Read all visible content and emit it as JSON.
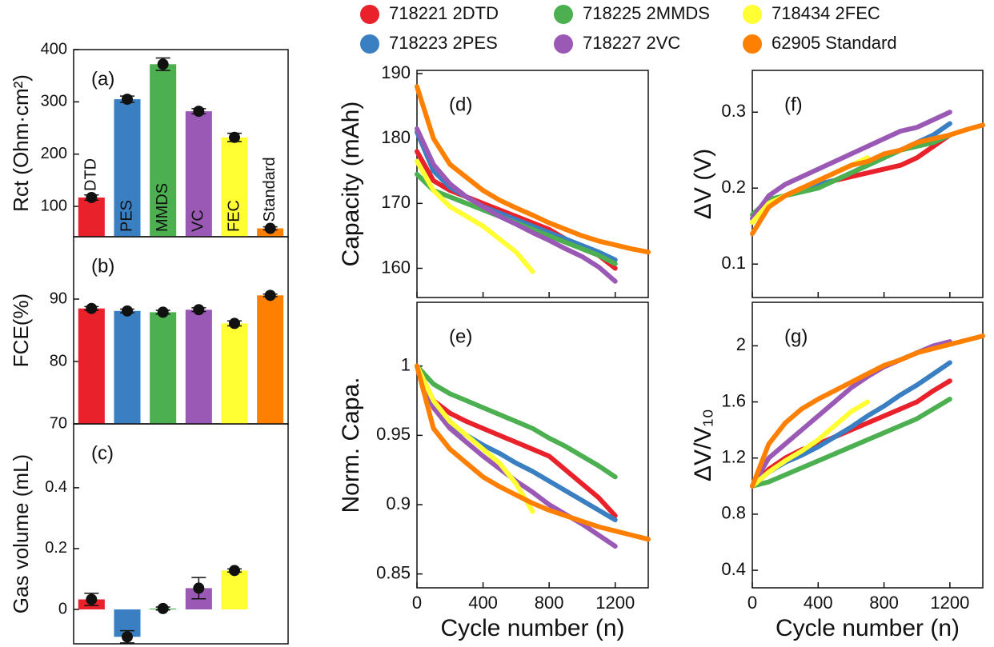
{
  "chart_data": [
    {
      "type": "bar",
      "title": "(a)",
      "ylabel": "Rct (Ohm·cm²)",
      "categories": [
        "DTD",
        "PES",
        "MMDS",
        "VC",
        "FEC",
        "Standard"
      ],
      "values": [
        117,
        305,
        372,
        282,
        232,
        58
      ],
      "errors": [
        5,
        6,
        12,
        5,
        8,
        3
      ],
      "colors": [
        "#e8212a",
        "#3a7fc1",
        "#4caf50",
        "#9b59b6",
        "#ffff33",
        "#ff7f00"
      ],
      "ylim": [
        42,
        400
      ],
      "yticks": [
        100,
        200,
        300,
        400
      ]
    },
    {
      "type": "bar",
      "title": "(b)",
      "ylabel": "FCE(%)",
      "values": [
        88.5,
        88.1,
        87.9,
        88.3,
        86.1,
        90.6
      ],
      "errors": [
        0.3,
        0.3,
        0.3,
        0.3,
        0.4,
        0.2
      ],
      "colors": [
        "#e8212a",
        "#3a7fc1",
        "#4caf50",
        "#9b59b6",
        "#ffff33",
        "#ff7f00"
      ],
      "ylim": [
        70,
        100
      ],
      "yticks": [
        70,
        80,
        90
      ]
    },
    {
      "type": "bar",
      "title": "(c)",
      "ylabel": "Gas volume (mL)",
      "values": [
        0.033,
        -0.09,
        0.003,
        0.07,
        0.128,
        null
      ],
      "errors": [
        0.02,
        0.02,
        0.005,
        0.035,
        0.005,
        null
      ],
      "colors": [
        "#e8212a",
        "#3a7fc1",
        "#4caf50",
        "#9b59b6",
        "#ffff33",
        "#ff7f00"
      ],
      "ylim": [
        -0.113,
        0.61
      ],
      "yticks": [
        0,
        0.2,
        0.4
      ]
    },
    {
      "type": "line",
      "title": "(d)",
      "ylabel": "Capacity (mAh)",
      "x": [
        0,
        100,
        200,
        300,
        400,
        500,
        600,
        700,
        800,
        900,
        1000,
        1100,
        1200,
        1300,
        1400
      ],
      "xlim": [
        0,
        1400
      ],
      "xticks": [
        0,
        400,
        800,
        1200
      ],
      "ylim": [
        155.5,
        190.5
      ],
      "yticks": [
        160,
        170,
        180,
        190
      ],
      "series": [
        {
          "name": "718221 2DTD",
          "color": "#e8212a",
          "values": [
            178,
            173.5,
            172,
            171,
            170,
            169,
            168,
            167,
            166,
            164.5,
            163,
            162,
            160,
            null,
            null
          ]
        },
        {
          "name": "718223 2PES",
          "color": "#3a7fc1",
          "values": [
            181,
            175,
            172.5,
            171,
            169.5,
            168.5,
            167.5,
            166.5,
            165.5,
            164.5,
            163.5,
            162.5,
            161.3,
            null,
            null
          ]
        },
        {
          "name": "718225 2MMDS",
          "color": "#4caf50",
          "values": [
            174.5,
            172,
            171,
            170,
            169,
            168,
            167,
            166,
            165,
            164,
            163,
            162,
            160.7,
            null,
            null
          ]
        },
        {
          "name": "718227 2VC",
          "color": "#9b59b6",
          "values": [
            181.5,
            176,
            173,
            171,
            169.5,
            168,
            166.8,
            165.5,
            164.3,
            163,
            161.8,
            160.2,
            158,
            null,
            null
          ]
        },
        {
          "name": "718434 2FEC",
          "color": "#ffff33",
          "values": [
            176.5,
            172,
            169.5,
            168,
            166.5,
            164.5,
            162.5,
            159.5,
            null,
            null,
            null,
            null,
            null,
            null,
            null
          ]
        },
        {
          "name": "62905 Standard",
          "color": "#ff7f00",
          "values": [
            188,
            180,
            176,
            174,
            172,
            170.5,
            169.3,
            168.2,
            167,
            166,
            165,
            164.2,
            163.6,
            163,
            162.5
          ]
        }
      ]
    },
    {
      "type": "line",
      "title": "(e)",
      "ylabel": "Norm. Capa.",
      "xlabel": "Cycle number (n)",
      "x": [
        0,
        100,
        200,
        300,
        400,
        500,
        600,
        700,
        800,
        900,
        1000,
        1100,
        1200,
        1300,
        1400
      ],
      "xlim": [
        0,
        1400
      ],
      "xticks": [
        0,
        400,
        800,
        1200
      ],
      "ylim": [
        0.84,
        1.046
      ],
      "yticks": [
        0.85,
        0.9,
        0.95,
        1
      ],
      "series": [
        {
          "color": "#e8212a",
          "values": [
            1,
            0.975,
            0.966,
            0.96,
            0.955,
            0.95,
            0.945,
            0.94,
            0.935,
            0.925,
            0.915,
            0.905,
            0.892,
            null,
            null
          ]
        },
        {
          "color": "#3a7fc1",
          "values": [
            1,
            0.97,
            0.958,
            0.95,
            0.943,
            0.937,
            0.93,
            0.924,
            0.917,
            0.91,
            0.903,
            0.896,
            0.889,
            null,
            null
          ]
        },
        {
          "color": "#4caf50",
          "values": [
            1,
            0.987,
            0.98,
            0.975,
            0.97,
            0.965,
            0.96,
            0.955,
            0.948,
            0.942,
            0.935,
            0.928,
            0.92,
            null,
            null
          ]
        },
        {
          "color": "#9b59b6",
          "values": [
            1,
            0.97,
            0.955,
            0.945,
            0.935,
            0.926,
            0.917,
            0.909,
            0.9,
            0.893,
            0.886,
            0.878,
            0.87,
            null,
            null
          ]
        },
        {
          "color": "#ffff33",
          "values": [
            1,
            0.975,
            0.96,
            0.95,
            0.94,
            0.93,
            0.915,
            0.895,
            null,
            null,
            null,
            null,
            null,
            null,
            null
          ]
        },
        {
          "color": "#ff7f00",
          "values": [
            1,
            0.955,
            0.94,
            0.93,
            0.92,
            0.913,
            0.907,
            0.901,
            0.896,
            0.892,
            0.888,
            0.884,
            0.881,
            0.878,
            0.875
          ]
        }
      ]
    },
    {
      "type": "line",
      "title": "(f)",
      "ylabel": "ΔV (V)",
      "x": [
        0,
        100,
        200,
        300,
        400,
        500,
        600,
        700,
        800,
        900,
        1000,
        1100,
        1200,
        1300,
        1400
      ],
      "xlim": [
        0,
        1400
      ],
      "xticks": [
        0,
        400,
        800,
        1200
      ],
      "ylim": [
        0.056,
        0.355
      ],
      "yticks": [
        0.1,
        0.2,
        0.3
      ],
      "series": [
        {
          "color": "#e8212a",
          "values": [
            0.155,
            0.18,
            0.19,
            0.2,
            0.205,
            0.21,
            0.215,
            0.22,
            0.225,
            0.23,
            0.24,
            0.255,
            0.27,
            null,
            null
          ]
        },
        {
          "color": "#3a7fc1",
          "values": [
            0.16,
            0.18,
            0.19,
            0.2,
            0.205,
            0.21,
            0.22,
            0.23,
            0.24,
            0.25,
            0.26,
            0.27,
            0.285,
            null,
            null
          ]
        },
        {
          "color": "#4caf50",
          "values": [
            0.165,
            0.185,
            0.19,
            0.195,
            0.2,
            0.21,
            0.22,
            0.23,
            0.24,
            0.25,
            0.255,
            0.26,
            0.27,
            null,
            null
          ]
        },
        {
          "color": "#9b59b6",
          "values": [
            0.16,
            0.19,
            0.205,
            0.215,
            0.225,
            0.235,
            0.245,
            0.255,
            0.265,
            0.275,
            0.28,
            0.29,
            0.3,
            null,
            null
          ]
        },
        {
          "color": "#ffff33",
          "values": [
            0.155,
            0.18,
            0.19,
            0.2,
            0.21,
            0.22,
            0.23,
            0.24,
            null,
            null,
            null,
            null,
            null,
            null,
            null
          ]
        },
        {
          "color": "#ff7f00",
          "values": [
            0.14,
            0.175,
            0.19,
            0.2,
            0.21,
            0.22,
            0.23,
            0.235,
            0.245,
            0.25,
            0.26,
            0.265,
            0.27,
            0.277,
            0.283
          ]
        }
      ]
    },
    {
      "type": "line",
      "title": "(g)",
      "ylabel": "ΔV/V₁₀",
      "xlabel": "Cycle number (n)",
      "x": [
        0,
        100,
        200,
        300,
        400,
        500,
        600,
        700,
        800,
        900,
        1000,
        1100,
        1200,
        1300,
        1400
      ],
      "xlim": [
        0,
        1400
      ],
      "xticks": [
        0,
        400,
        800,
        1200
      ],
      "ylim": [
        0.275,
        2.31
      ],
      "yticks": [
        0.4,
        0.8,
        1.2,
        1.6,
        2
      ],
      "series": [
        {
          "color": "#e8212a",
          "values": [
            1,
            1.12,
            1.2,
            1.26,
            1.3,
            1.35,
            1.4,
            1.45,
            1.5,
            1.55,
            1.6,
            1.68,
            1.75,
            null,
            null
          ]
        },
        {
          "color": "#3a7fc1",
          "values": [
            1,
            1.1,
            1.17,
            1.22,
            1.28,
            1.35,
            1.42,
            1.5,
            1.57,
            1.65,
            1.72,
            1.8,
            1.88,
            null,
            null
          ]
        },
        {
          "color": "#4caf50",
          "values": [
            1,
            1.03,
            1.08,
            1.13,
            1.18,
            1.23,
            1.28,
            1.33,
            1.38,
            1.43,
            1.48,
            1.55,
            1.62,
            null,
            null
          ]
        },
        {
          "color": "#9b59b6",
          "values": [
            1,
            1.2,
            1.3,
            1.4,
            1.5,
            1.6,
            1.7,
            1.78,
            1.85,
            1.9,
            1.95,
            2,
            2.03,
            null,
            null
          ]
        },
        {
          "color": "#ffff33",
          "values": [
            1,
            1.1,
            1.18,
            1.25,
            1.33,
            1.43,
            1.53,
            1.6,
            null,
            null,
            null,
            null,
            null,
            null,
            null
          ]
        },
        {
          "color": "#ff7f00",
          "values": [
            1,
            1.3,
            1.45,
            1.55,
            1.62,
            1.68,
            1.74,
            1.8,
            1.86,
            1.9,
            1.95,
            1.98,
            2.01,
            2.04,
            2.07
          ]
        }
      ]
    }
  ]
}
